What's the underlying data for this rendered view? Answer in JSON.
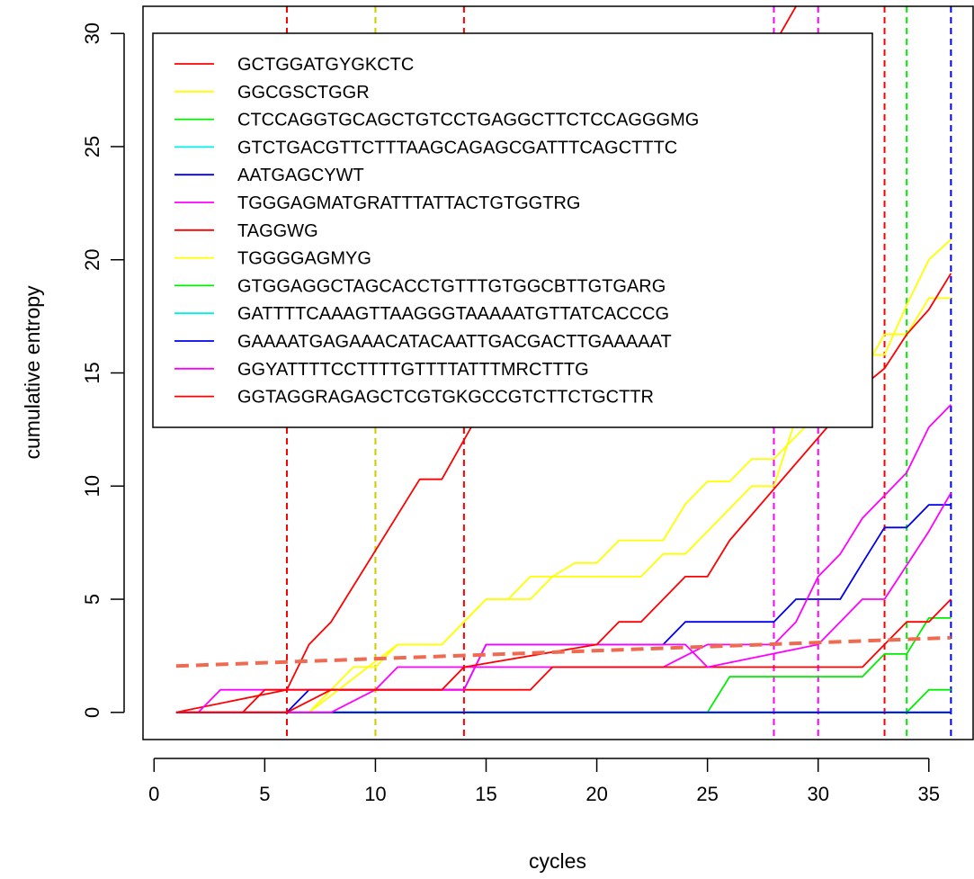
{
  "chart_data": {
    "type": "line",
    "xlabel": "cycles",
    "ylabel": "cumulative entropy",
    "xlim": [
      -0.5,
      37
    ],
    "ylim": [
      -1.2,
      31.2
    ],
    "xticks": [
      0,
      5,
      10,
      15,
      20,
      25,
      30,
      35
    ],
    "yticks": [
      0,
      5,
      10,
      15,
      20,
      25,
      30
    ],
    "legend_position": "top-left",
    "grid": false,
    "series": [
      {
        "name": "GCTGGATGYGKCTC",
        "color": "#FF0000",
        "x": [
          1,
          6,
          7,
          8,
          12,
          13,
          16,
          20,
          24,
          28,
          29
        ],
        "y": [
          0,
          1,
          3,
          4,
          10.3,
          10.3,
          15.5,
          21,
          25,
          29.5,
          31.2
        ]
      },
      {
        "name": "GGCGSCTGGR",
        "color": "#FFFF00",
        "x": [
          1,
          7,
          8,
          9,
          10,
          11,
          13,
          15,
          16,
          17,
          18,
          19,
          20,
          22,
          23,
          24,
          25,
          26,
          27,
          28,
          29,
          30,
          31,
          32,
          33,
          34,
          35,
          36
        ],
        "y": [
          0,
          0,
          1,
          2,
          2,
          3,
          3,
          5,
          5,
          5,
          6,
          6,
          6,
          6,
          7,
          7,
          8,
          9,
          10,
          10,
          13,
          13,
          14,
          15,
          16.7,
          16.7,
          18.3,
          18.3
        ]
      },
      {
        "name": "CTCCAGGTGCAGCTGTCCTGAGGCTTCTCCAGGGMG",
        "color": "#00EE00",
        "x": [
          1,
          25,
          26,
          32,
          33,
          34,
          35,
          36
        ],
        "y": [
          0,
          0,
          1.58,
          1.58,
          2.58,
          2.58,
          4.17,
          4.17
        ]
      },
      {
        "name": "GTCTGACGTTCTTTAAGCAGAGCGATTTCAGCTTTC",
        "color": "#00EEEE",
        "x": [
          1,
          36
        ],
        "y": [
          0,
          0
        ]
      },
      {
        "name": "AATGAGCYWT",
        "color": "#0000EE",
        "x": [
          1,
          6,
          7,
          14,
          15,
          23,
          24,
          28,
          29,
          31,
          32,
          33,
          34,
          35,
          36
        ],
        "y": [
          0,
          0,
          1,
          1,
          3,
          3,
          4,
          4,
          5,
          5,
          6.6,
          8.17,
          8.17,
          9.17,
          9.17
        ]
      },
      {
        "name": "TGGGAGMATGRATTTATTACTGTGGTRG",
        "color": "#FF00FF",
        "x": [
          1,
          2,
          3,
          6,
          10,
          11,
          23,
          25,
          28,
          29,
          30,
          31,
          32,
          33,
          34,
          35,
          36
        ],
        "y": [
          0,
          0,
          1,
          1,
          1,
          2,
          2,
          3,
          3,
          4,
          6,
          7,
          8.58,
          9.58,
          10.6,
          12.6,
          13.6
        ]
      },
      {
        "name": "TAGGWG",
        "color": "#FF0000",
        "x": [
          1,
          4,
          5,
          17,
          18,
          32,
          33,
          34,
          35,
          36
        ],
        "y": [
          0,
          0,
          1,
          1,
          2,
          2,
          3,
          4,
          4,
          5
        ]
      },
      {
        "name": "TGGGGAGMYG",
        "color": "#FFFF00",
        "x": [
          1,
          7,
          11,
          13,
          14,
          15,
          16,
          17,
          18,
          19,
          20,
          21,
          22,
          23,
          24,
          25,
          26,
          27,
          28,
          29,
          30,
          31,
          32,
          33,
          34,
          35,
          36
        ],
        "y": [
          0,
          0,
          3,
          3,
          4,
          5,
          5,
          6,
          6,
          6.6,
          6.6,
          7.6,
          7.6,
          7.6,
          9.2,
          10.2,
          10.2,
          11.2,
          11.2,
          12.2,
          13.2,
          13.2,
          15.8,
          15.8,
          18,
          20,
          20.9
        ]
      },
      {
        "name": "GTGGAGGCTAGCACCTGTTTGTGGCBTTGTGARG",
        "color": "#00EE00",
        "x": [
          1,
          34,
          35,
          36
        ],
        "y": [
          0,
          0,
          1,
          1
        ]
      },
      {
        "name": "GATTTTCAAAGTTAAGGGTAAAAATGTTATCACCCG",
        "color": "#00EEEE",
        "x": [
          1,
          36
        ],
        "y": [
          0,
          0
        ]
      },
      {
        "name": "GAAAATGAGAAACATACAATTGACGACTTGAAAAAT",
        "color": "#0000EE",
        "x": [
          1,
          36
        ],
        "y": [
          0,
          0
        ]
      },
      {
        "name": "GGYATTTTCCTTTTGTTTTATTTMRCTTTG",
        "color": "#FF00FF",
        "x": [
          1,
          8,
          10,
          14,
          15,
          24,
          25,
          30,
          31,
          32,
          33,
          34,
          35,
          36
        ],
        "y": [
          0,
          0,
          1,
          1,
          3,
          3,
          2,
          3,
          4,
          5,
          5,
          6.5,
          8,
          9.7
        ]
      },
      {
        "name": "GGTAGGRAGAGCTCGTGKGCCGTCTTCTGCTTR",
        "color": "#FF0000",
        "x": [
          1,
          6,
          8,
          13,
          14,
          20,
          21,
          22,
          24,
          25,
          26,
          32,
          33,
          34,
          35,
          36
        ],
        "y": [
          0,
          0,
          1,
          1,
          2,
          3,
          4,
          4,
          6,
          6,
          7.6,
          14.4,
          15.2,
          16.7,
          17.8,
          19.4
        ]
      }
    ],
    "trend": {
      "color": "#EE6A50",
      "x": [
        1,
        36
      ],
      "y": [
        2.05,
        3.3
      ]
    },
    "vlines": [
      {
        "x": 6,
        "color": "#FF0000"
      },
      {
        "x": 10,
        "color": "#FFFF00"
      },
      {
        "x": 10,
        "color": "#CDCD00"
      },
      {
        "x": 14,
        "color": "#FF0000"
      },
      {
        "x": 28,
        "color": "#FF00FF"
      },
      {
        "x": 30,
        "color": "#FF00FF"
      },
      {
        "x": 33,
        "color": "#FF0000"
      },
      {
        "x": 34,
        "color": "#00EE00"
      },
      {
        "x": 36,
        "color": "#0000EE"
      }
    ]
  }
}
